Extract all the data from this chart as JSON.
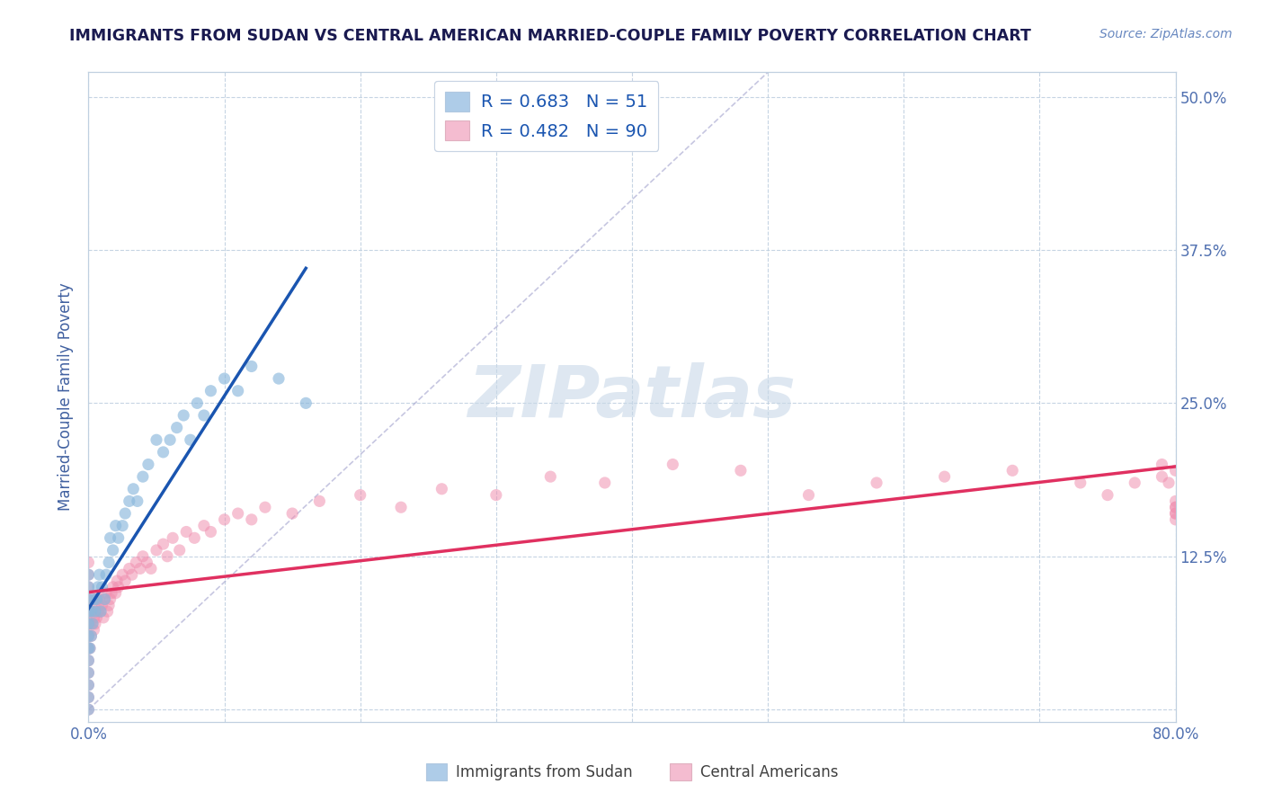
{
  "title": "IMMIGRANTS FROM SUDAN VS CENTRAL AMERICAN MARRIED-COUPLE FAMILY POVERTY CORRELATION CHART",
  "source_text": "Source: ZipAtlas.com",
  "ylabel": "Married-Couple Family Poverty",
  "xlim": [
    0.0,
    0.8
  ],
  "ylim": [
    -0.01,
    0.52
  ],
  "xtick_positions": [
    0.0,
    0.1,
    0.2,
    0.3,
    0.4,
    0.5,
    0.6,
    0.7,
    0.8
  ],
  "xticklabels": [
    "0.0%",
    "",
    "",
    "",
    "",
    "",
    "",
    "",
    "80.0%"
  ],
  "ytick_positions": [
    0.0,
    0.125,
    0.25,
    0.375,
    0.5
  ],
  "yticklabels_right": [
    "",
    "12.5%",
    "25.0%",
    "37.5%",
    "50.0%"
  ],
  "watermark": "ZIPatlas",
  "legend1_R": "0.683",
  "legend1_N": "51",
  "legend2_R": "0.482",
  "legend2_N": "90",
  "legend1_color": "#aecce8",
  "legend2_color": "#f4bcd0",
  "scatter1_color": "#8ab8dc",
  "scatter2_color": "#f090b0",
  "line1_color": "#1a55b0",
  "line2_color": "#e03060",
  "diag_color": "#9898c8",
  "title_color": "#1a1a50",
  "axis_label_color": "#4060a0",
  "tick_color": "#5070b0",
  "grid_color": "#c0d0e0",
  "background_color": "#ffffff",
  "watermark_color": "#c8d8e8",
  "sudan_x": [
    0.0,
    0.0,
    0.0,
    0.0,
    0.0,
    0.0,
    0.0,
    0.0,
    0.0,
    0.0,
    0.0,
    0.0,
    0.001,
    0.002,
    0.002,
    0.003,
    0.004,
    0.005,
    0.006,
    0.007,
    0.008,
    0.009,
    0.01,
    0.012,
    0.013,
    0.015,
    0.016,
    0.018,
    0.02,
    0.022,
    0.025,
    0.027,
    0.03,
    0.033,
    0.036,
    0.04,
    0.044,
    0.05,
    0.055,
    0.06,
    0.065,
    0.07,
    0.075,
    0.08,
    0.085,
    0.09,
    0.1,
    0.11,
    0.12,
    0.14,
    0.16
  ],
  "sudan_y": [
    0.0,
    0.01,
    0.02,
    0.03,
    0.04,
    0.05,
    0.06,
    0.07,
    0.08,
    0.09,
    0.1,
    0.11,
    0.05,
    0.06,
    0.08,
    0.07,
    0.09,
    0.08,
    0.09,
    0.1,
    0.11,
    0.08,
    0.1,
    0.09,
    0.11,
    0.12,
    0.14,
    0.13,
    0.15,
    0.14,
    0.15,
    0.16,
    0.17,
    0.18,
    0.17,
    0.19,
    0.2,
    0.22,
    0.21,
    0.22,
    0.23,
    0.24,
    0.22,
    0.25,
    0.24,
    0.26,
    0.27,
    0.26,
    0.28,
    0.27,
    0.25
  ],
  "central_x": [
    0.0,
    0.0,
    0.0,
    0.0,
    0.0,
    0.0,
    0.0,
    0.0,
    0.0,
    0.0,
    0.0,
    0.0,
    0.0,
    0.001,
    0.001,
    0.002,
    0.002,
    0.003,
    0.003,
    0.004,
    0.004,
    0.005,
    0.005,
    0.006,
    0.006,
    0.007,
    0.007,
    0.008,
    0.009,
    0.01,
    0.011,
    0.012,
    0.013,
    0.014,
    0.015,
    0.016,
    0.017,
    0.018,
    0.02,
    0.021,
    0.022,
    0.025,
    0.027,
    0.03,
    0.032,
    0.035,
    0.038,
    0.04,
    0.043,
    0.046,
    0.05,
    0.055,
    0.058,
    0.062,
    0.067,
    0.072,
    0.078,
    0.085,
    0.09,
    0.1,
    0.11,
    0.12,
    0.13,
    0.15,
    0.17,
    0.2,
    0.23,
    0.26,
    0.3,
    0.34,
    0.38,
    0.43,
    0.48,
    0.53,
    0.58,
    0.63,
    0.68,
    0.73,
    0.75,
    0.77,
    0.79,
    0.79,
    0.795,
    0.8,
    0.8,
    0.8,
    0.8,
    0.8,
    0.8,
    0.8
  ],
  "central_y": [
    0.0,
    0.01,
    0.02,
    0.03,
    0.04,
    0.05,
    0.06,
    0.07,
    0.08,
    0.09,
    0.1,
    0.11,
    0.12,
    0.05,
    0.07,
    0.06,
    0.08,
    0.07,
    0.09,
    0.065,
    0.075,
    0.07,
    0.08,
    0.075,
    0.09,
    0.08,
    0.085,
    0.09,
    0.08,
    0.085,
    0.075,
    0.09,
    0.095,
    0.08,
    0.085,
    0.09,
    0.095,
    0.1,
    0.095,
    0.105,
    0.1,
    0.11,
    0.105,
    0.115,
    0.11,
    0.12,
    0.115,
    0.125,
    0.12,
    0.115,
    0.13,
    0.135,
    0.125,
    0.14,
    0.13,
    0.145,
    0.14,
    0.15,
    0.145,
    0.155,
    0.16,
    0.155,
    0.165,
    0.16,
    0.17,
    0.175,
    0.165,
    0.18,
    0.175,
    0.19,
    0.185,
    0.2,
    0.195,
    0.175,
    0.185,
    0.19,
    0.195,
    0.185,
    0.175,
    0.185,
    0.19,
    0.2,
    0.185,
    0.195,
    0.16,
    0.165,
    0.155,
    0.165,
    0.16,
    0.17
  ]
}
